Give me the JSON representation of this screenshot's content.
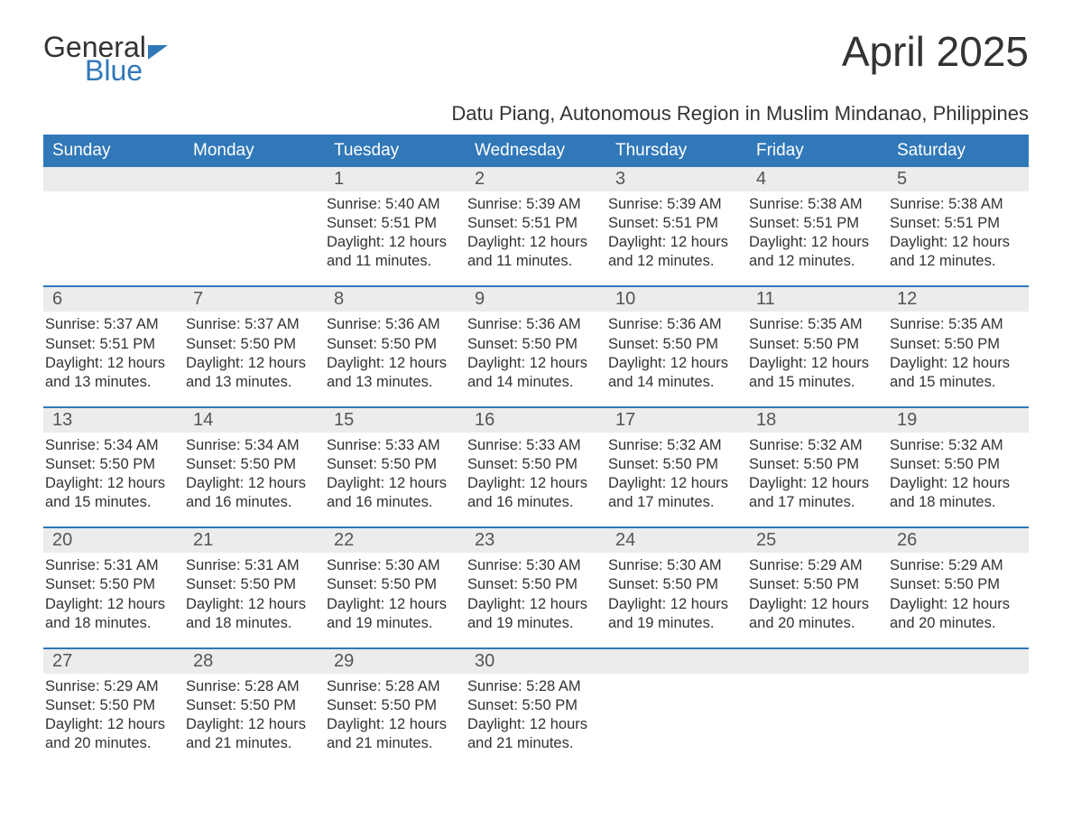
{
  "brand": {
    "word1": "General",
    "word2": "Blue",
    "accent": "#3178b9",
    "text": "#333333"
  },
  "header": {
    "month_title": "April 2025",
    "location": "Datu Piang, Autonomous Region in Muslim Mindanao, Philippines"
  },
  "calendar": {
    "type": "table",
    "background_color": "#ffffff",
    "header_bg": "#3178b9",
    "header_text_color": "#ffffff",
    "daynum_bg": "#ececec",
    "week_divider_color": "#3178b9",
    "body_text_color": "#333333",
    "font_family": "Arial",
    "header_fontsize": 19,
    "daynum_fontsize": 20,
    "body_fontsize": 16.5,
    "columns": [
      "Sunday",
      "Monday",
      "Tuesday",
      "Wednesday",
      "Thursday",
      "Friday",
      "Saturday"
    ],
    "weeks": [
      [
        null,
        null,
        {
          "n": "1",
          "sunrise": "5:40 AM",
          "sunset": "5:51 PM",
          "daylight": "12 hours and 11 minutes."
        },
        {
          "n": "2",
          "sunrise": "5:39 AM",
          "sunset": "5:51 PM",
          "daylight": "12 hours and 11 minutes."
        },
        {
          "n": "3",
          "sunrise": "5:39 AM",
          "sunset": "5:51 PM",
          "daylight": "12 hours and 12 minutes."
        },
        {
          "n": "4",
          "sunrise": "5:38 AM",
          "sunset": "5:51 PM",
          "daylight": "12 hours and 12 minutes."
        },
        {
          "n": "5",
          "sunrise": "5:38 AM",
          "sunset": "5:51 PM",
          "daylight": "12 hours and 12 minutes."
        }
      ],
      [
        {
          "n": "6",
          "sunrise": "5:37 AM",
          "sunset": "5:51 PM",
          "daylight": "12 hours and 13 minutes."
        },
        {
          "n": "7",
          "sunrise": "5:37 AM",
          "sunset": "5:50 PM",
          "daylight": "12 hours and 13 minutes."
        },
        {
          "n": "8",
          "sunrise": "5:36 AM",
          "sunset": "5:50 PM",
          "daylight": "12 hours and 13 minutes."
        },
        {
          "n": "9",
          "sunrise": "5:36 AM",
          "sunset": "5:50 PM",
          "daylight": "12 hours and 14 minutes."
        },
        {
          "n": "10",
          "sunrise": "5:36 AM",
          "sunset": "5:50 PM",
          "daylight": "12 hours and 14 minutes."
        },
        {
          "n": "11",
          "sunrise": "5:35 AM",
          "sunset": "5:50 PM",
          "daylight": "12 hours and 15 minutes."
        },
        {
          "n": "12",
          "sunrise": "5:35 AM",
          "sunset": "5:50 PM",
          "daylight": "12 hours and 15 minutes."
        }
      ],
      [
        {
          "n": "13",
          "sunrise": "5:34 AM",
          "sunset": "5:50 PM",
          "daylight": "12 hours and 15 minutes."
        },
        {
          "n": "14",
          "sunrise": "5:34 AM",
          "sunset": "5:50 PM",
          "daylight": "12 hours and 16 minutes."
        },
        {
          "n": "15",
          "sunrise": "5:33 AM",
          "sunset": "5:50 PM",
          "daylight": "12 hours and 16 minutes."
        },
        {
          "n": "16",
          "sunrise": "5:33 AM",
          "sunset": "5:50 PM",
          "daylight": "12 hours and 16 minutes."
        },
        {
          "n": "17",
          "sunrise": "5:32 AM",
          "sunset": "5:50 PM",
          "daylight": "12 hours and 17 minutes."
        },
        {
          "n": "18",
          "sunrise": "5:32 AM",
          "sunset": "5:50 PM",
          "daylight": "12 hours and 17 minutes."
        },
        {
          "n": "19",
          "sunrise": "5:32 AM",
          "sunset": "5:50 PM",
          "daylight": "12 hours and 18 minutes."
        }
      ],
      [
        {
          "n": "20",
          "sunrise": "5:31 AM",
          "sunset": "5:50 PM",
          "daylight": "12 hours and 18 minutes."
        },
        {
          "n": "21",
          "sunrise": "5:31 AM",
          "sunset": "5:50 PM",
          "daylight": "12 hours and 18 minutes."
        },
        {
          "n": "22",
          "sunrise": "5:30 AM",
          "sunset": "5:50 PM",
          "daylight": "12 hours and 19 minutes."
        },
        {
          "n": "23",
          "sunrise": "5:30 AM",
          "sunset": "5:50 PM",
          "daylight": "12 hours and 19 minutes."
        },
        {
          "n": "24",
          "sunrise": "5:30 AM",
          "sunset": "5:50 PM",
          "daylight": "12 hours and 19 minutes."
        },
        {
          "n": "25",
          "sunrise": "5:29 AM",
          "sunset": "5:50 PM",
          "daylight": "12 hours and 20 minutes."
        },
        {
          "n": "26",
          "sunrise": "5:29 AM",
          "sunset": "5:50 PM",
          "daylight": "12 hours and 20 minutes."
        }
      ],
      [
        {
          "n": "27",
          "sunrise": "5:29 AM",
          "sunset": "5:50 PM",
          "daylight": "12 hours and 20 minutes."
        },
        {
          "n": "28",
          "sunrise": "5:28 AM",
          "sunset": "5:50 PM",
          "daylight": "12 hours and 21 minutes."
        },
        {
          "n": "29",
          "sunrise": "5:28 AM",
          "sunset": "5:50 PM",
          "daylight": "12 hours and 21 minutes."
        },
        {
          "n": "30",
          "sunrise": "5:28 AM",
          "sunset": "5:50 PM",
          "daylight": "12 hours and 21 minutes."
        },
        null,
        null,
        null
      ]
    ],
    "labels": {
      "sunrise": "Sunrise: ",
      "sunset": "Sunset: ",
      "daylight": "Daylight: "
    }
  }
}
